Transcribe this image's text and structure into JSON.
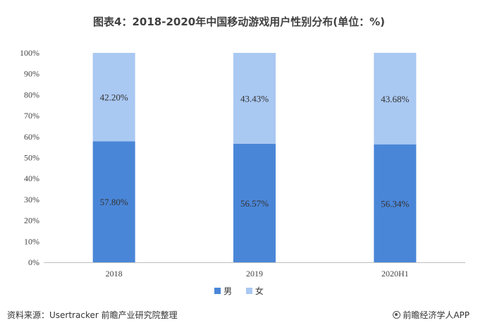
{
  "chart_data": {
    "type": "bar",
    "stacked": true,
    "title": "图表4：2018-2020年中国移动游戏用户性别分布(单位：%)",
    "categories": [
      "2018",
      "2019",
      "2020H1"
    ],
    "series": [
      {
        "name": "男",
        "values": [
          57.8,
          56.57,
          56.34
        ],
        "labels": [
          "57.80%",
          "56.57%",
          "56.34%"
        ],
        "color": "#4a86d8"
      },
      {
        "name": "女",
        "values": [
          42.2,
          43.43,
          43.68
        ],
        "labels": [
          "42.20%",
          "43.43%",
          "43.68%"
        ],
        "color": "#a9c8f2"
      }
    ],
    "ylim": [
      0,
      100
    ],
    "yticks": [
      "0%",
      "10%",
      "20%",
      "30%",
      "40%",
      "50%",
      "60%",
      "70%",
      "80%",
      "90%",
      "100%"
    ],
    "grid": false,
    "legend_position": "bottom"
  },
  "footer": {
    "source": "资料来源：Usertracker 前瞻产业研究院整理",
    "brand": "前瞻经济学人APP"
  }
}
